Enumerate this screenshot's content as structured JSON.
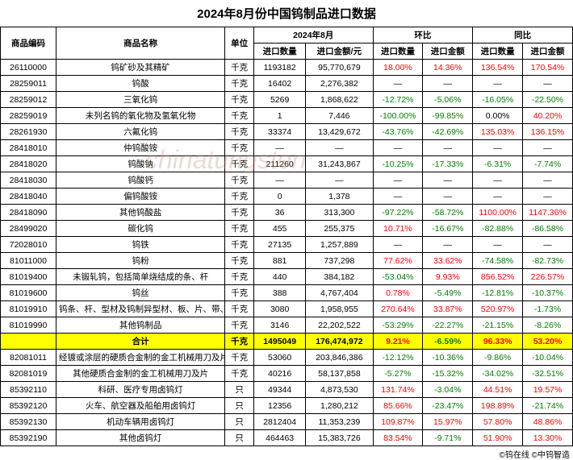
{
  "title": "2024年8月份中国钨制品进口数据",
  "headers": {
    "code": "商品编码",
    "name": "商品名称",
    "unit": "单位",
    "period": "2024年8月",
    "mom": "环比",
    "yoy": "同比",
    "qty": "进口数量",
    "amt": "进口金额/元",
    "pct_qty": "进口数量",
    "pct_amt": "进口金额"
  },
  "rows": [
    {
      "code": "26110000",
      "name": "钨矿砂及其精矿",
      "unit": "千克",
      "qty": "1193182",
      "amt": "95,770,679",
      "mom_qty": "18.00%",
      "mom_qty_c": "pos",
      "mom_amt": "14.36%",
      "mom_amt_c": "pos",
      "yoy_qty": "136.54%",
      "yoy_qty_c": "pos",
      "yoy_amt": "170.54%",
      "yoy_amt_c": "pos"
    },
    {
      "code": "28259011",
      "name": "钨酸",
      "unit": "千克",
      "qty": "16402",
      "amt": "2,276,382",
      "mom_qty": "—",
      "mom_amt": "—",
      "yoy_qty": "—",
      "yoy_amt": "—"
    },
    {
      "code": "28259012",
      "name": "三氧化钨",
      "unit": "千克",
      "qty": "5269",
      "amt": "1,868,622",
      "mom_qty": "-12.72%",
      "mom_qty_c": "neg",
      "mom_amt": "-5.06%",
      "mom_amt_c": "neg",
      "yoy_qty": "-16.05%",
      "yoy_qty_c": "neg",
      "yoy_amt": "-22.50%",
      "yoy_amt_c": "neg"
    },
    {
      "code": "28259019",
      "name": "未列名钨的氧化物及氢氧化物",
      "unit": "千克",
      "qty": "1",
      "amt": "7,446",
      "mom_qty": "-100.00%",
      "mom_qty_c": "neg",
      "mom_amt": "-99.85%",
      "mom_amt_c": "neg",
      "yoy_qty": "0.00%",
      "yoy_amt": "40.20%",
      "yoy_amt_c": "pos"
    },
    {
      "code": "28261930",
      "name": "六氟化钨",
      "unit": "千克",
      "qty": "33374",
      "amt": "13,429,672",
      "mom_qty": "-43.76%",
      "mom_qty_c": "neg",
      "mom_amt": "-42.69%",
      "mom_amt_c": "neg",
      "yoy_qty": "135.03%",
      "yoy_qty_c": "pos",
      "yoy_amt": "136.15%",
      "yoy_amt_c": "pos"
    },
    {
      "code": "28418010",
      "name": "仲钨酸铵",
      "unit": "千克",
      "qty": "—",
      "amt": "—",
      "mom_qty": "—",
      "mom_amt": "—",
      "yoy_qty": "—",
      "yoy_amt": "—"
    },
    {
      "code": "28418020",
      "name": "钨酸钠",
      "unit": "千克",
      "qty": "211260",
      "amt": "31,243,867",
      "mom_qty": "-10.25%",
      "mom_qty_c": "neg",
      "mom_amt": "-17.33%",
      "mom_amt_c": "neg",
      "yoy_qty": "-6.31%",
      "yoy_qty_c": "neg",
      "yoy_amt": "-7.74%",
      "yoy_amt_c": "neg"
    },
    {
      "code": "28418030",
      "name": "钨酸钙",
      "unit": "千克",
      "qty": "—",
      "amt": "—",
      "mom_qty": "—",
      "mom_amt": "—",
      "yoy_qty": "—",
      "yoy_amt": "—"
    },
    {
      "code": "28418040",
      "name": "偏钨酸铵",
      "unit": "千克",
      "qty": "0",
      "amt": "1,378",
      "mom_qty": "—",
      "mom_amt": "—",
      "yoy_qty": "—",
      "yoy_amt": "—"
    },
    {
      "code": "28418090",
      "name": "其他钨酸盐",
      "unit": "千克",
      "qty": "36",
      "amt": "313,300",
      "mom_qty": "-97.22%",
      "mom_qty_c": "neg",
      "mom_amt": "-58.72%",
      "mom_amt_c": "neg",
      "yoy_qty": "1100.00%",
      "yoy_qty_c": "pos",
      "yoy_amt": "1147.36%",
      "yoy_amt_c": "pos"
    },
    {
      "code": "28499020",
      "name": "碳化钨",
      "unit": "千克",
      "qty": "455",
      "amt": "255,375",
      "mom_qty": "10.71%",
      "mom_qty_c": "pos",
      "mom_amt": "-16.67%",
      "mom_amt_c": "neg",
      "yoy_qty": "-82.88%",
      "yoy_qty_c": "neg",
      "yoy_amt": "-86.58%",
      "yoy_amt_c": "neg"
    },
    {
      "code": "72028010",
      "name": "钨铁",
      "unit": "千克",
      "qty": "27135",
      "amt": "1,257,889",
      "mom_qty": "—",
      "mom_amt": "—",
      "yoy_qty": "—",
      "yoy_amt": "—"
    },
    {
      "code": "81011000",
      "name": "钨粉",
      "unit": "千克",
      "qty": "881",
      "amt": "737,298",
      "mom_qty": "77.62%",
      "mom_qty_c": "pos",
      "mom_amt": "33.62%",
      "mom_amt_c": "pos",
      "yoy_qty": "-74.58%",
      "yoy_qty_c": "neg",
      "yoy_amt": "-82.73%",
      "yoy_amt_c": "neg"
    },
    {
      "code": "81019400",
      "name": "未锻轧钨，包括简单烧结成的条、杆",
      "unit": "千克",
      "qty": "440",
      "amt": "384,182",
      "mom_qty": "-53.04%",
      "mom_qty_c": "neg",
      "mom_amt": "9.93%",
      "mom_amt_c": "pos",
      "yoy_qty": "856.52%",
      "yoy_qty_c": "pos",
      "yoy_amt": "226.57%",
      "yoy_amt_c": "pos"
    },
    {
      "code": "81019600",
      "name": "钨丝",
      "unit": "千克",
      "qty": "388",
      "amt": "4,767,404",
      "mom_qty": "0.78%",
      "mom_qty_c": "pos",
      "mom_amt": "-5.49%",
      "mom_amt_c": "neg",
      "yoy_qty": "-12.81%",
      "yoy_qty_c": "neg",
      "yoy_amt": "-10.37%",
      "yoy_amt_c": "neg"
    },
    {
      "code": "81019910",
      "name": "钨条、杆、型材及钨制异型材、板、片、带、箔",
      "unit": "千克",
      "qty": "3080",
      "amt": "1,958,955",
      "mom_qty": "270.64%",
      "mom_qty_c": "pos",
      "mom_amt": "33.87%",
      "mom_amt_c": "pos",
      "yoy_qty": "520.97%",
      "yoy_qty_c": "pos",
      "yoy_amt": "-1.73%",
      "yoy_amt_c": "neg"
    },
    {
      "code": "81019990",
      "name": "其他钨制品",
      "unit": "千克",
      "qty": "3146",
      "amt": "22,202,522",
      "mom_qty": "-53.29%",
      "mom_qty_c": "neg",
      "mom_amt": "-22.27%",
      "mom_amt_c": "neg",
      "yoy_qty": "-21.15%",
      "yoy_qty_c": "neg",
      "yoy_amt": "-8.26%",
      "yoy_amt_c": "neg"
    },
    {
      "code": "",
      "name": "合计",
      "unit": "千克",
      "qty": "1495049",
      "amt": "176,474,972",
      "mom_qty": "9.21%",
      "mom_qty_c": "pos",
      "mom_amt": "-6.59%",
      "mom_amt_c": "neg",
      "yoy_qty": "96.33%",
      "yoy_qty_c": "pos",
      "yoy_amt": "53.20%",
      "yoy_amt_c": "pos",
      "hl": true
    },
    {
      "code": "82081011",
      "name": "经镀或涂层的硬质合金制的金工机械用刀及片",
      "unit": "千克",
      "qty": "53060",
      "amt": "203,846,386",
      "mom_qty": "-12.12%",
      "mom_qty_c": "neg",
      "mom_amt": "-10.36%",
      "mom_amt_c": "neg",
      "yoy_qty": "-9.86%",
      "yoy_qty_c": "neg",
      "yoy_amt": "-10.04%",
      "yoy_amt_c": "neg"
    },
    {
      "code": "82081019",
      "name": "其他硬质合金制的金工机械用刀及片",
      "unit": "千克",
      "qty": "40216",
      "amt": "58,137,858",
      "mom_qty": "-5.27%",
      "mom_qty_c": "neg",
      "mom_amt": "-15.32%",
      "mom_amt_c": "neg",
      "yoy_qty": "-34.02%",
      "yoy_qty_c": "neg",
      "yoy_amt": "-32.51%",
      "yoy_amt_c": "neg"
    },
    {
      "code": "85392110",
      "name": "科研、医疗专用卤钨灯",
      "unit": "只",
      "qty": "49344",
      "amt": "4,873,530",
      "mom_qty": "131.74%",
      "mom_qty_c": "pos",
      "mom_amt": "-3.04%",
      "mom_amt_c": "neg",
      "yoy_qty": "44.51%",
      "yoy_qty_c": "pos",
      "yoy_amt": "19.57%",
      "yoy_amt_c": "pos"
    },
    {
      "code": "85392120",
      "name": "火车、航空器及船舶用卤钨灯",
      "unit": "只",
      "qty": "12356",
      "amt": "1,280,212",
      "mom_qty": "85.66%",
      "mom_qty_c": "pos",
      "mom_amt": "-23.47%",
      "mom_amt_c": "neg",
      "yoy_qty": "198.89%",
      "yoy_qty_c": "pos",
      "yoy_amt": "-21.74%",
      "yoy_amt_c": "neg"
    },
    {
      "code": "85392130",
      "name": "机动车辆用卤钨灯",
      "unit": "只",
      "qty": "2812404",
      "amt": "11,353,239",
      "mom_qty": "109.87%",
      "mom_qty_c": "pos",
      "mom_amt": "15.97%",
      "mom_amt_c": "pos",
      "yoy_qty": "57.80%",
      "yoy_qty_c": "pos",
      "yoy_amt": "48.86%",
      "yoy_amt_c": "pos"
    },
    {
      "code": "85392190",
      "name": "其他卤钨灯",
      "unit": "只",
      "qty": "464463",
      "amt": "15,383,726",
      "mom_qty": "83.54%",
      "mom_qty_c": "pos",
      "mom_amt": "-9.71%",
      "mom_amt_c": "neg",
      "yoy_qty": "51.90%",
      "yoy_qty_c": "pos",
      "yoy_amt": "13.30%",
      "yoy_amt_c": "pos"
    }
  ],
  "footer": "©钨在线    ©中钨智造",
  "watermark": "chinatungsten"
}
